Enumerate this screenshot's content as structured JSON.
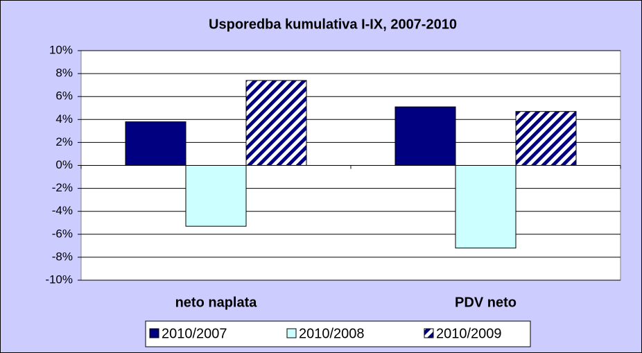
{
  "chart_data": {
    "type": "bar",
    "title": "Usporedba kumulativa I-IX, 2007-2010",
    "categories": [
      "neto naplata",
      "PDV neto"
    ],
    "series": [
      {
        "name": "2010/2007",
        "color": "#000080",
        "values": [
          3.8,
          5.1
        ]
      },
      {
        "name": "2010/2008",
        "color": "#ccffff",
        "values": [
          -5.3,
          -7.2
        ]
      },
      {
        "name": "2010/2009",
        "color": "#000080",
        "pattern": "diagonal",
        "values": [
          7.4,
          4.7
        ]
      }
    ],
    "ylim": [
      -10,
      10
    ],
    "yticks": [
      {
        "value": -10,
        "label": "-10%"
      },
      {
        "value": -8,
        "label": "-8%"
      },
      {
        "value": -6,
        "label": "-6%"
      },
      {
        "value": -4,
        "label": "-4%"
      },
      {
        "value": -2,
        "label": "-2%"
      },
      {
        "value": 0,
        "label": "0%"
      },
      {
        "value": 2,
        "label": "2%"
      },
      {
        "value": 4,
        "label": "4%"
      },
      {
        "value": 6,
        "label": "6%"
      },
      {
        "value": 8,
        "label": "8%"
      },
      {
        "value": 10,
        "label": "10%"
      }
    ],
    "grid": true,
    "legend": "bottom"
  }
}
